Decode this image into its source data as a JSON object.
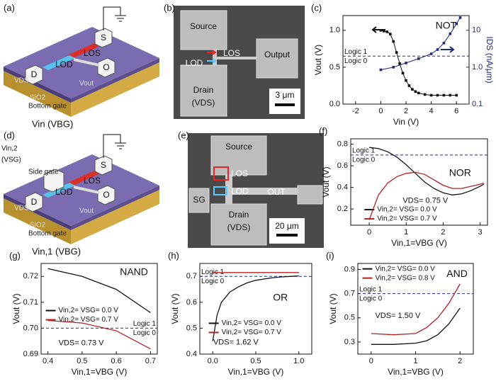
{
  "diagrams": [
    {
      "panel": "(a)",
      "labels": [
        "S",
        "D",
        "O",
        "LOS",
        "LOD",
        "VDS",
        "Vout",
        "SiO2",
        "Bottom gate",
        "Vin (VBG)"
      ]
    },
    {
      "panel": "(b)",
      "labels": [
        "Source",
        "LOS",
        "LOD",
        "Output",
        "Drain",
        "(VDS)",
        "3 μm"
      ]
    },
    {
      "panel": "(d)",
      "labels": [
        "S",
        "D",
        "O",
        "LOS",
        "LOD",
        "VDS",
        "Vout",
        "SiO2",
        "Bottom gate",
        "Vin,1 (VBG)",
        "Vin,2",
        "(VSG)",
        "Side gate"
      ]
    },
    {
      "panel": "(e)",
      "labels": [
        "Source",
        "LOS",
        "SG",
        "OUT",
        "LOD",
        "Drain",
        "(VDS)",
        "20 μm"
      ]
    }
  ],
  "chart_data": [
    {
      "panel": "(c)",
      "type": "line",
      "annotations": [
        "NOT"
      ],
      "logic_labels": [
        "Logic 1",
        "Logic 0"
      ],
      "threshold": 0.65,
      "x_label": "Vin (V)",
      "y_label": "Vout (V)",
      "y2_label": "IDS (nA/μm)",
      "xlim": [
        -3,
        7
      ],
      "xticks": [
        -2,
        0,
        2,
        4,
        6
      ],
      "ylim": [
        0,
        1.2
      ],
      "yticks": [
        {
          "value": 0,
          "label": "0.0"
        },
        0.5,
        {
          "value": 1,
          "label": "1.0"
        }
      ],
      "y2lim": [
        0.1,
        25
      ],
      "y2ticks": [
        0.1,
        {
          "value": 1,
          "label": "1.0"
        },
        10
      ],
      "y2_log": true,
      "series": [
        {
          "color": "#111111",
          "marker": "square",
          "x": [
            0,
            0.25,
            0.5,
            0.75,
            1,
            1.25,
            1.5,
            1.75,
            2,
            2.25,
            2.5,
            2.75,
            3,
            3.5,
            4,
            4.5,
            5,
            5.5,
            6
          ],
          "values": [
            1.0,
            0.99,
            0.98,
            0.95,
            0.85,
            0.7,
            0.55,
            0.42,
            0.32,
            0.25,
            0.2,
            0.17,
            0.15,
            0.13,
            0.12,
            0.12,
            0.12,
            0.12,
            0.12
          ]
        },
        {
          "color": "#1f2a7a",
          "marker": "square",
          "axis": "y2",
          "x": [
            0,
            1,
            2,
            3,
            4,
            4.5,
            5,
            5.5,
            6,
            6.3
          ],
          "values": [
            0.85,
            1.0,
            1.3,
            1.7,
            2.3,
            3,
            4.5,
            8,
            15,
            22
          ]
        }
      ]
    },
    {
      "panel": "(f)",
      "type": "line",
      "annotations": [
        "NOR",
        "VDS= 0.75 V"
      ],
      "logic_labels": [
        "Logic 1",
        "Logic 0"
      ],
      "threshold": 0.7,
      "x_label": "Vin,1=VBG (V)",
      "y_label": "Vout (V)",
      "xlim": [
        -0.5,
        3.2
      ],
      "xticks": [
        0,
        1,
        2,
        3
      ],
      "ylim": [
        0.05,
        0.85
      ],
      "yticks": [
        0.2,
        0.4,
        0.6,
        0.8
      ],
      "series": [
        {
          "name": "Vin,2= VSG= 0.0 V",
          "color": "#111111",
          "x": [
            0,
            0.25,
            0.5,
            0.75,
            1,
            1.25,
            1.5,
            1.75,
            2,
            2.25,
            2.5,
            2.75,
            3,
            3.1
          ],
          "values": [
            0.77,
            0.76,
            0.73,
            0.68,
            0.61,
            0.53,
            0.45,
            0.39,
            0.35,
            0.33,
            0.34,
            0.37,
            0.41,
            0.43
          ]
        },
        {
          "name": "Vin,2= VSG= 0.7 V",
          "color": "#b22222",
          "x": [
            0,
            0.25,
            0.5,
            0.75,
            1,
            1.25,
            1.5,
            1.75,
            2,
            2.25,
            2.5,
            2.75,
            3,
            3.1
          ],
          "values": [
            0.1,
            0.33,
            0.44,
            0.5,
            0.53,
            0.54,
            0.52,
            0.47,
            0.42,
            0.39,
            0.39,
            0.41,
            0.43,
            0.44
          ]
        }
      ]
    },
    {
      "panel": "(g)",
      "type": "line",
      "annotations": [
        "NAND",
        "VDS= 0.73 V"
      ],
      "logic_labels": [
        "Logic 1",
        "Logic 0"
      ],
      "threshold": 0.7,
      "x_label": "Vin,1=VBG (V)",
      "y_label": "Vout (V)",
      "xlim": [
        0.38,
        0.72
      ],
      "xticks": [
        0.4,
        0.5,
        0.6,
        0.7
      ],
      "ylim": [
        0.69,
        0.725
      ],
      "yticks": [
        0.69,
        {
          "value": 0.7,
          "label": "0.70"
        },
        0.71,
        0.72
      ],
      "series": [
        {
          "name": "Vin,2= VSG= 0.0 V",
          "color": "#111111",
          "x": [
            0.4,
            0.5,
            0.6,
            0.7
          ],
          "values": [
            0.723,
            0.72,
            0.715,
            0.706
          ]
        },
        {
          "name": "Vin,2= VSG= 0.7 V",
          "color": "#b22222",
          "x": [
            0.4,
            0.5,
            0.6,
            0.7
          ],
          "values": [
            0.703,
            0.702,
            0.699,
            0.692
          ]
        }
      ]
    },
    {
      "panel": "(h)",
      "type": "line",
      "annotations": [
        "OR",
        "VDS= 1.62 V"
      ],
      "logic_labels": [
        "Logic 1",
        "Logic 0"
      ],
      "threshold": 0.7,
      "x_label": "Vin,1=VBG (V)",
      "y_label": "Vout (V)",
      "xlim": [
        -0.15,
        1.15
      ],
      "xticks": [
        {
          "value": 0,
          "label": "0.0"
        },
        0.5,
        {
          "value": 1,
          "label": "1.0"
        }
      ],
      "ylim": [
        0.4,
        0.75
      ],
      "yticks": [
        0.4,
        0.5,
        0.6,
        0.7
      ],
      "series": [
        {
          "name": "Vin,2= VSG= 0.0 V",
          "color": "#111111",
          "x": [
            0,
            0.05,
            0.1,
            0.2,
            0.3,
            0.4,
            0.5,
            0.6,
            0.7,
            0.8,
            0.9,
            1.0
          ],
          "values": [
            0.45,
            0.55,
            0.6,
            0.64,
            0.66,
            0.675,
            0.685,
            0.69,
            0.695,
            0.698,
            0.7,
            0.702
          ]
        },
        {
          "name": "Vin,2= VSG= 0.7 V",
          "color": "#b22222",
          "x": [
            0,
            1
          ],
          "values": [
            0.715,
            0.715
          ]
        }
      ]
    },
    {
      "panel": "(i)",
      "type": "line",
      "annotations": [
        "AND",
        "VDS= 1.50 V"
      ],
      "logic_labels": [
        "Logic 1",
        "Logic 0"
      ],
      "threshold": 0.7,
      "x_label": "Vin,1=VBG (V)",
      "y_label": "Vout (V)",
      "xlim": [
        -0.3,
        2.3
      ],
      "xticks": [
        0,
        1,
        2
      ],
      "ylim": [
        0.2,
        0.95
      ],
      "yticks": [
        0.3,
        0.5,
        0.7,
        0.9
      ],
      "series": [
        {
          "name": "Vin,2= VSG= 0.0 V",
          "color": "#111111",
          "x": [
            0,
            0.5,
            1,
            1.25,
            1.5,
            1.75,
            2
          ],
          "values": [
            0.28,
            0.28,
            0.29,
            0.31,
            0.36,
            0.45,
            0.58
          ]
        },
        {
          "name": "Vin,2= VSG= 0.8 V",
          "color": "#b22222",
          "x": [
            0,
            0.5,
            1,
            1.25,
            1.5,
            1.75,
            2
          ],
          "values": [
            0.37,
            0.36,
            0.37,
            0.42,
            0.5,
            0.62,
            0.78
          ]
        }
      ]
    }
  ]
}
